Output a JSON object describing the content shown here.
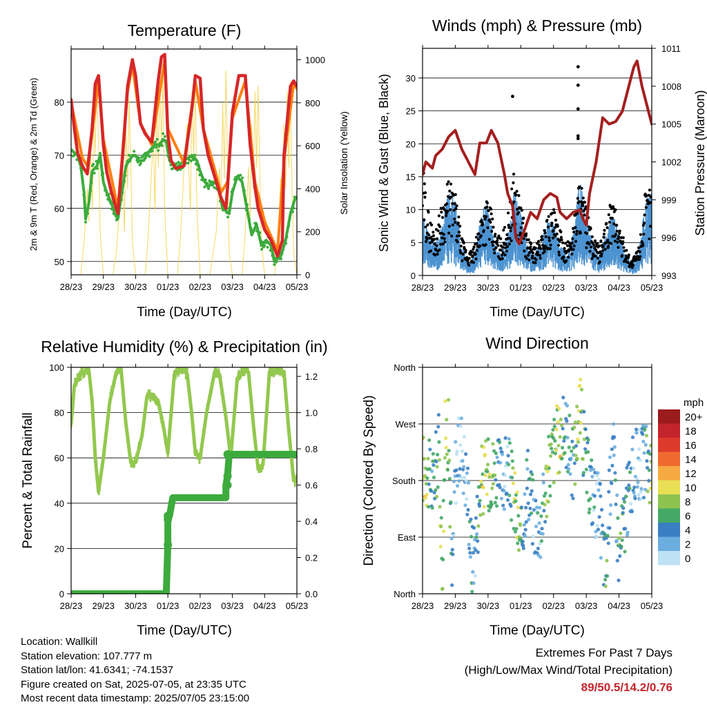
{
  "colors": {
    "temp_2m": "#d62728",
    "temp_9m": "#ff7f0e",
    "dewpoint": "#3cab3c",
    "solar": "#f5d350",
    "wind": "#4c93d1",
    "gust": "#000000",
    "pressure": "#a31f1f",
    "rh": "#93c84f",
    "precip": "#3cab3c",
    "extremes_values": "#c4242b"
  },
  "charts": {
    "temperature": {
      "title": "Temperature (F)",
      "xlabel": "Time (Day/UTC)",
      "ylabel_left": "2m & 9m T (Red, Orange) & 2m Td (Green)",
      "ylabel_right": "Solar Insolation (Yellow)"
    },
    "winds": {
      "title": "Winds (mph) & Pressure (mb)",
      "xlabel": "Time (Day/UTC)",
      "ylabel_left": "Sonic Wind & Gust (Blue, Black)",
      "ylabel_right": "Station Pressure (Maroon)"
    },
    "humidity": {
      "title": "Relative Humidity (%) & Precipitation (in)",
      "xlabel": "Time (Day/UTC)",
      "ylabel_left": "Percent & Total Rainfall"
    },
    "direction": {
      "title": "Wind Direction",
      "xlabel": "Time (Day/UTC)",
      "ylabel_left": "Direction (Colored By Speed)",
      "legend_title": "mph",
      "legend_labels": [
        "20+",
        "18",
        "16",
        "14",
        "12",
        "10",
        "8",
        "6",
        "4",
        "2",
        "0"
      ],
      "legend_colors": [
        "#9b1b1e",
        "#c4242b",
        "#dd3a2c",
        "#ef6a2e",
        "#f7a941",
        "#e8df55",
        "#8cc44f",
        "#45a866",
        "#3a7fc2",
        "#6aaee0",
        "#bde2f4"
      ]
    }
  },
  "info": {
    "location": "Location: Wallkill",
    "elevation": "Station elevation: 107.777 m",
    "latlon": "Station lat/lon: 41.6341; -74.1537",
    "created": "Figure created on Sat, 2025-07-05, at 23:35 UTC",
    "recent": "Most recent data timestamp: 2025/07/05 23:15:00"
  },
  "extremes": {
    "title": "Extremes For Past 7 Days",
    "subtitle": "(High/Low/Max Wind/Total Precipitation)",
    "values": "89/50.5/14.2/0.76"
  },
  "chart_data": [
    {
      "type": "line",
      "id": "temperature",
      "x_ticks": [
        "28/23",
        "29/23",
        "30/23",
        "01/23",
        "02/23",
        "03/23",
        "04/23",
        "05/23"
      ],
      "y_ticks": [
        "50",
        "60",
        "70",
        "80"
      ],
      "y2_ticks": [
        "0",
        "200",
        "400",
        "600",
        "800",
        "1000"
      ],
      "ylim": [
        47.5,
        90
      ],
      "y2lim": [
        0,
        1050
      ],
      "series": [
        {
          "name": "2m T",
          "x": [
            0,
            0.1,
            0.2,
            0.35,
            0.5,
            0.65,
            0.75,
            0.85,
            1.0,
            1.1,
            1.25,
            1.45,
            1.6,
            1.75,
            1.9,
            2.0,
            2.15,
            2.3,
            2.5,
            2.7,
            2.8,
            2.9,
            3.0,
            3.1,
            3.25,
            3.5,
            3.75,
            3.85,
            4.0,
            4.1,
            4.25,
            4.45,
            4.65,
            4.8,
            4.85,
            5.0,
            5.2,
            5.4,
            5.55,
            5.7,
            5.8,
            6.0,
            6.2,
            6.4,
            6.55,
            6.6,
            6.8,
            6.9,
            7.0
          ],
          "y": [
            80.5,
            75,
            70.5,
            68,
            66.5,
            75,
            83.5,
            85,
            72,
            67,
            63,
            59,
            70,
            83,
            88,
            85,
            76,
            74,
            72.5,
            84,
            88.5,
            89,
            74,
            69,
            67.5,
            68,
            79,
            85,
            84.5,
            75,
            70,
            66,
            62,
            60,
            64,
            78,
            85,
            85,
            72,
            64,
            60,
            56,
            54,
            51,
            54,
            70,
            83,
            84,
            83
          ]
        },
        {
          "name": "9m T",
          "x": [
            0,
            0.35,
            0.5,
            0.65,
            0.85,
            1.0,
            1.45,
            1.75,
            1.9,
            2.15,
            2.5,
            2.9,
            3.0,
            3.5,
            3.85,
            4.1,
            4.65,
            4.85,
            5.0,
            5.4,
            5.7,
            6.0,
            6.4,
            6.6,
            6.9,
            7.0
          ],
          "y": [
            80,
            69.5,
            68,
            74,
            84,
            73,
            60,
            82,
            87,
            76,
            72,
            88,
            75,
            68.5,
            84,
            75,
            63,
            65,
            77,
            84,
            65,
            57.5,
            52,
            69,
            83.5,
            82.5
          ]
        },
        {
          "name": "2m Td",
          "x": [
            0,
            0.2,
            0.3,
            0.4,
            0.45,
            0.55,
            0.65,
            0.8,
            0.9,
            1.0,
            1.1,
            1.25,
            1.35,
            1.45,
            1.55,
            1.7,
            1.9,
            2.0,
            2.1,
            2.25,
            2.45,
            2.6,
            2.75,
            2.85,
            2.95,
            3.05,
            3.25,
            3.5,
            3.75,
            3.9,
            4.0,
            4.1,
            4.25,
            4.4,
            4.55,
            4.7,
            4.9,
            5.0,
            5.15,
            5.3,
            5.45,
            5.6,
            5.75,
            5.9,
            6.05,
            6.2,
            6.3,
            6.5,
            6.65,
            6.8,
            6.95,
            7.0
          ],
          "y": [
            71,
            70,
            68,
            63,
            58,
            61,
            67,
            68,
            70,
            65,
            63,
            61,
            59,
            58,
            62,
            68,
            70,
            70,
            69,
            69,
            71,
            72,
            72,
            73,
            72.5,
            69,
            67.5,
            69,
            70,
            69,
            67,
            65.5,
            64,
            65,
            64.5,
            60,
            59,
            63,
            66,
            65,
            60,
            55,
            57,
            53,
            54,
            53,
            50,
            51,
            54,
            59,
            62,
            62
          ]
        },
        {
          "name": "Solar Insolation",
          "axis": "right",
          "x": [
            0,
            0.3,
            0.4,
            0.5,
            0.55,
            0.6,
            0.66,
            0.7,
            0.74,
            0.8,
            0.85,
            0.9,
            1.0,
            1.3,
            1.4,
            1.5,
            1.6,
            1.65,
            1.7,
            1.75,
            1.8,
            1.85,
            1.9,
            2.0,
            2.3,
            2.4,
            2.55,
            2.6,
            2.65,
            2.7,
            2.75,
            2.8,
            2.85,
            2.9,
            3.0,
            3.3,
            3.4,
            3.5,
            3.6,
            3.7,
            3.75,
            3.8,
            3.85,
            3.9,
            4.0,
            4.3,
            4.4,
            4.5,
            4.6,
            4.65,
            4.7,
            4.75,
            4.8,
            4.85,
            4.9,
            5.0,
            5.3,
            5.4,
            5.5,
            5.55,
            5.6,
            5.65,
            5.7,
            5.75,
            5.8,
            5.85,
            5.9,
            6.0,
            6.3,
            6.4,
            6.5,
            6.55,
            6.6,
            6.65,
            6.7,
            6.75,
            6.8,
            6.85,
            6.9,
            7.0
          ],
          "y": [
            0,
            0,
            150,
            400,
            250,
            600,
            300,
            820,
            560,
            880,
            600,
            200,
            0,
            0,
            100,
            300,
            500,
            200,
            700,
            400,
            820,
            500,
            150,
            0,
            0,
            200,
            650,
            300,
            820,
            500,
            900,
            600,
            950,
            300,
            0,
            0,
            200,
            500,
            700,
            300,
            850,
            550,
            900,
            300,
            0,
            0,
            100,
            200,
            500,
            300,
            800,
            450,
            950,
            500,
            100,
            0,
            0,
            200,
            500,
            250,
            700,
            400,
            850,
            500,
            880,
            450,
            150,
            0,
            0,
            100,
            450,
            200,
            700,
            400,
            850,
            500,
            900,
            400,
            100,
            0
          ]
        }
      ]
    },
    {
      "type": "scatter",
      "id": "winds",
      "x_ticks": [
        "28/23",
        "29/23",
        "30/23",
        "01/23",
        "02/23",
        "03/23",
        "04/23",
        "05/23"
      ],
      "y_ticks": [
        "0",
        "5",
        "10",
        "15",
        "20",
        "25",
        "30"
      ],
      "y2_ticks": [
        "993",
        "996",
        "999",
        "1002",
        "1005",
        "1008",
        "1011"
      ],
      "ylim": [
        0,
        34.5
      ],
      "y2lim": [
        993,
        1011
      ],
      "gust_outliers": [
        {
          "x": 2.75,
          "y": 27.2
        },
        {
          "x": 4.75,
          "y": 31.7
        },
        {
          "x": 4.75,
          "y": 28.9
        },
        {
          "x": 4.75,
          "y": 25.3
        },
        {
          "x": 4.75,
          "y": 21.2
        },
        {
          "x": 4.75,
          "y": 20.8
        }
      ],
      "series": [
        {
          "name": "Station Pressure",
          "axis": "right",
          "x": [
            0,
            0.1,
            0.3,
            0.4,
            0.6,
            0.8,
            1.0,
            1.2,
            1.4,
            1.6,
            1.75,
            1.95,
            2.1,
            2.3,
            2.5,
            2.6,
            2.75,
            2.85,
            2.95,
            3.1,
            3.3,
            3.5,
            3.7,
            3.9,
            4.1,
            4.2,
            4.4,
            4.6,
            4.8,
            4.9,
            5.0,
            5.1,
            5.3,
            5.5,
            5.7,
            5.9,
            6.1,
            6.3,
            6.45,
            6.55,
            6.7,
            6.85,
            7.0
          ],
          "y": [
            1001,
            1002,
            1001.5,
            1002.5,
            1003,
            1004,
            1004.5,
            1003,
            1002,
            1001,
            1003.5,
            1003.5,
            1004.5,
            1003.5,
            1001,
            999.5,
            998.5,
            996,
            995.5,
            996.5,
            998,
            997.5,
            999,
            999.5,
            999.2,
            998,
            997.5,
            998,
            998.2,
            997.5,
            997,
            999.5,
            1002,
            1005.5,
            1005,
            1005.2,
            1006,
            1008,
            1009.5,
            1010,
            1008,
            1006.5,
            1005
          ]
        },
        {
          "name": "Sonic Wind",
          "x": [
            0,
            0.2,
            0.4,
            0.6,
            0.8,
            1.0,
            1.2,
            1.4,
            1.6,
            1.8,
            2.0,
            2.2,
            2.4,
            2.6,
            2.8,
            3.0,
            3.2,
            3.4,
            3.6,
            3.8,
            4.0,
            4.2,
            4.4,
            4.6,
            4.8,
            5.0,
            5.2,
            5.4,
            5.6,
            5.8,
            6.0,
            6.2,
            6.4,
            6.6,
            6.8,
            7.0
          ],
          "y": [
            6,
            4,
            3,
            5,
            8,
            7,
            3,
            1,
            2,
            6,
            7,
            3,
            2,
            4,
            8,
            6,
            3,
            2,
            3,
            5,
            5,
            3,
            2,
            4,
            9,
            6,
            3,
            2,
            4,
            6,
            4,
            2,
            1,
            2,
            7,
            8
          ]
        },
        {
          "name": "Gust",
          "x": [
            0,
            0.2,
            0.4,
            0.6,
            0.8,
            1.0,
            1.2,
            1.4,
            1.6,
            1.8,
            2.0,
            2.2,
            2.4,
            2.6,
            2.8,
            3.0,
            3.2,
            3.4,
            3.6,
            3.8,
            4.0,
            4.2,
            4.4,
            4.6,
            4.8,
            5.0,
            5.2,
            5.4,
            5.6,
            5.8,
            6.0,
            6.2,
            6.4,
            6.6,
            6.8,
            7.0
          ],
          "y": [
            15,
            8,
            6,
            10,
            13,
            11,
            5,
            3,
            4,
            9,
            11,
            6,
            5,
            8,
            14,
            10,
            5,
            4,
            5,
            8,
            9,
            6,
            4,
            7,
            14,
            9,
            5,
            4,
            7,
            11,
            7,
            4,
            2,
            4,
            11,
            13
          ]
        }
      ]
    },
    {
      "type": "line",
      "id": "humidity",
      "x_ticks": [
        "28/23",
        "29/23",
        "30/23",
        "01/23",
        "02/23",
        "03/23",
        "04/23",
        "05/23"
      ],
      "y_ticks": [
        "0",
        "20",
        "40",
        "60",
        "80",
        "100"
      ],
      "y2_ticks": [
        "0.0",
        "0.2",
        "0.4",
        "0.6",
        "0.8",
        "1.0",
        "1.2"
      ],
      "ylim": [
        0,
        100
      ],
      "y2lim": [
        0,
        1.25
      ],
      "series": [
        {
          "name": "Relative Humidity",
          "x": [
            0,
            0.1,
            0.3,
            0.55,
            0.65,
            0.75,
            0.85,
            1.0,
            1.2,
            1.4,
            1.55,
            1.7,
            1.85,
            2.0,
            2.2,
            2.35,
            2.55,
            2.7,
            2.85,
            3.0,
            3.2,
            3.45,
            3.6,
            3.75,
            3.85,
            4.0,
            4.2,
            4.45,
            4.6,
            4.8,
            4.95,
            5.15,
            5.35,
            5.5,
            5.65,
            5.8,
            5.95,
            6.15,
            6.4,
            6.6,
            6.75,
            6.9,
            7.0
          ],
          "y": [
            75,
            92,
            97,
            99,
            85,
            60,
            45,
            60,
            85,
            98,
            99,
            75,
            58,
            58,
            70,
            87,
            88,
            85,
            75,
            62,
            97,
            99,
            97,
            78,
            62,
            60,
            80,
            98,
            97,
            78,
            60,
            95,
            99,
            98,
            75,
            55,
            57,
            98,
            99,
            98,
            72,
            50,
            50
          ]
        },
        {
          "name": "Total Precipitation",
          "axis": "right",
          "x": [
            0,
            2.95,
            3.0,
            3.0,
            3.05,
            3.15,
            4.8,
            4.8,
            4.85,
            4.9,
            7.0
          ],
          "y": [
            0,
            0,
            0.27,
            0.41,
            0.43,
            0.53,
            0.53,
            0.6,
            0.65,
            0.77,
            0.77
          ]
        }
      ]
    },
    {
      "type": "scatter",
      "id": "direction",
      "x_ticks": [
        "28/23",
        "29/23",
        "30/23",
        "01/23",
        "02/23",
        "03/23",
        "04/23",
        "05/23"
      ],
      "y_tick_labels": [
        "North",
        "East",
        "South",
        "West",
        "North"
      ],
      "ylim": [
        0,
        360
      ],
      "color_scale": "wind speed (mph)",
      "x": [
        0.1,
        0.3,
        0.5,
        0.6,
        0.7,
        0.8,
        0.9,
        1.0,
        1.2,
        1.4,
        1.5,
        1.6,
        1.8,
        2.0,
        2.2,
        2.4,
        2.6,
        2.8,
        3.0,
        3.2,
        3.4,
        3.6,
        3.8,
        4.0,
        4.2,
        4.4,
        4.6,
        4.8,
        5.0,
        5.2,
        5.4,
        5.6,
        5.8,
        6.0,
        6.2,
        6.4,
        6.6,
        6.8,
        7.0
      ],
      "y": [
        200,
        170,
        230,
        40,
        260,
        250,
        20,
        200,
        240,
        150,
        50,
        80,
        180,
        190,
        200,
        180,
        200,
        150,
        70,
        190,
        120,
        110,
        180,
        230,
        250,
        260,
        200,
        300,
        200,
        160,
        130,
        30,
        250,
        60,
        130,
        190,
        210,
        210,
        200
      ],
      "speed": [
        9,
        4,
        6,
        8,
        9,
        7,
        3,
        2,
        1,
        3,
        5,
        2,
        9,
        8,
        7,
        3,
        2,
        8,
        6,
        4,
        3,
        3,
        8,
        7,
        9,
        3,
        5,
        8,
        5,
        3,
        2,
        6,
        3,
        6,
        4,
        3,
        2,
        4,
        8
      ]
    }
  ]
}
